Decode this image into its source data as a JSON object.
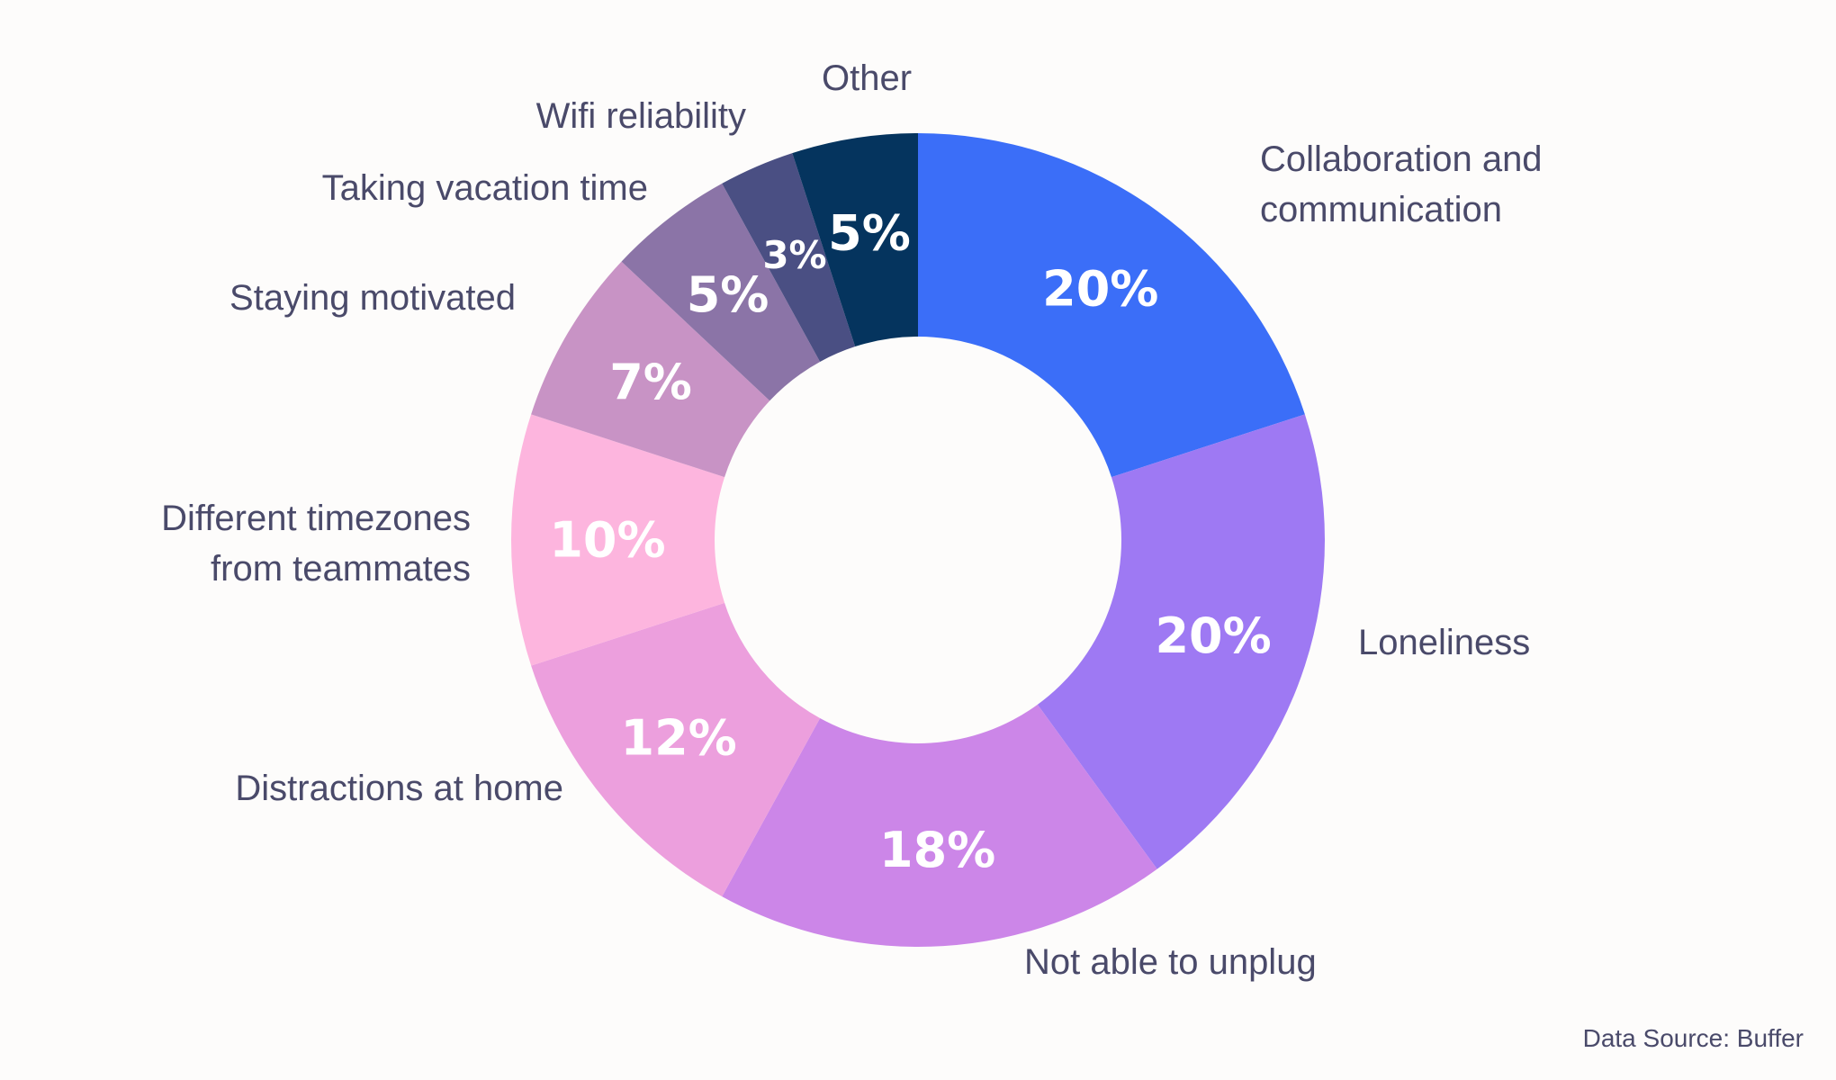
{
  "chart_data": {
    "type": "pie",
    "donut": true,
    "unit": "%",
    "slices": [
      {
        "label": [
          "Collaboration and",
          "communication"
        ],
        "value": 20,
        "value_label": "20%",
        "color": "#3b6ef8"
      },
      {
        "label": [
          "Loneliness"
        ],
        "value": 20,
        "value_label": "20%",
        "color": "#9e79f3"
      },
      {
        "label": [
          "Not able to unplug"
        ],
        "value": 18,
        "value_label": "18%",
        "color": "#cc86e8"
      },
      {
        "label": [
          "Distractions at home"
        ],
        "value": 12,
        "value_label": "12%",
        "color": "#ec9fdd"
      },
      {
        "label": [
          "Different timezones",
          "from teammates"
        ],
        "value": 10,
        "value_label": "10%",
        "color": "#fdb5de"
      },
      {
        "label": [
          "Staying motivated"
        ],
        "value": 7,
        "value_label": "7%",
        "color": "#c893c5"
      },
      {
        "label": [
          "Taking vacation time"
        ],
        "value": 5,
        "value_label": "5%",
        "color": "#8b74a7"
      },
      {
        "label": [
          "Wifi reliability"
        ],
        "value": 3,
        "value_label": "3%",
        "color": "#4a4f83"
      },
      {
        "label": [
          "Other"
        ],
        "value": 5,
        "value_label": "5%",
        "color": "#05345e"
      }
    ],
    "source_note": "Data Source: Buffer"
  }
}
